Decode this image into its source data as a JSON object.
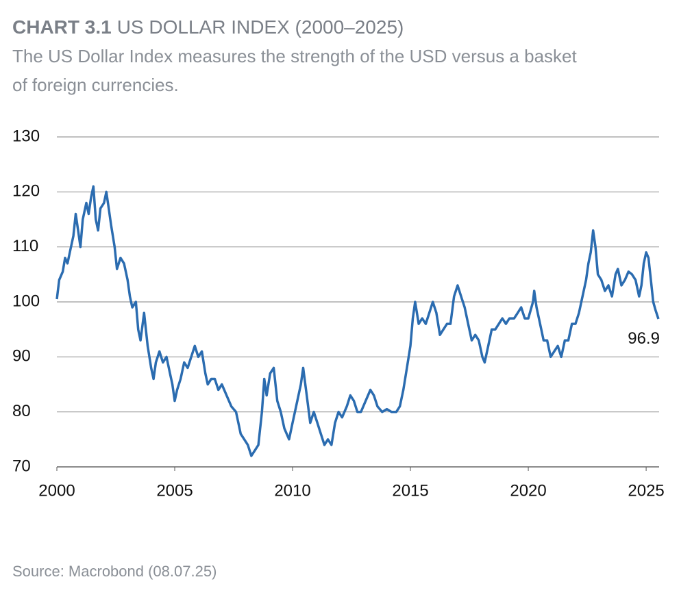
{
  "chart_data": {
    "type": "line",
    "title_label": "CHART 3.1",
    "title": "US DOLLAR INDEX (2000–2025)",
    "subtitle": [
      "The US Dollar Index measures the strength of the USD versus a basket",
      "of foreign currencies."
    ],
    "source": "Source: Macrobond (08.07.25)",
    "x": [
      2000.0,
      2000.1,
      2000.25,
      2000.35,
      2000.45,
      2000.55,
      2000.7,
      2000.8,
      2000.9,
      2001.0,
      2001.1,
      2001.25,
      2001.35,
      2001.45,
      2001.55,
      2001.65,
      2001.75,
      2001.85,
      2002.0,
      2002.1,
      2002.2,
      2002.3,
      2002.45,
      2002.55,
      2002.7,
      2002.85,
      2003.0,
      2003.1,
      2003.2,
      2003.35,
      2003.45,
      2003.55,
      2003.7,
      2003.85,
      2004.0,
      2004.1,
      2004.2,
      2004.35,
      2004.5,
      2004.65,
      2004.8,
      2004.9,
      2005.0,
      2005.1,
      2005.25,
      2005.4,
      2005.55,
      2005.7,
      2005.85,
      2006.0,
      2006.15,
      2006.3,
      2006.4,
      2006.55,
      2006.7,
      2006.85,
      2007.0,
      2007.2,
      2007.4,
      2007.6,
      2007.8,
      2007.95,
      2008.1,
      2008.25,
      2008.4,
      2008.55,
      2008.7,
      2008.8,
      2008.9,
      2009.05,
      2009.2,
      2009.35,
      2009.5,
      2009.65,
      2009.85,
      2010.0,
      2010.15,
      2010.35,
      2010.45,
      2010.6,
      2010.75,
      2010.9,
      2011.05,
      2011.2,
      2011.35,
      2011.5,
      2011.65,
      2011.8,
      2011.95,
      2012.1,
      2012.3,
      2012.45,
      2012.6,
      2012.75,
      2012.9,
      2013.1,
      2013.3,
      2013.45,
      2013.6,
      2013.8,
      2014.0,
      2014.2,
      2014.4,
      2014.55,
      2014.7,
      2014.85,
      2015.0,
      2015.1,
      2015.2,
      2015.35,
      2015.5,
      2015.65,
      2015.8,
      2015.95,
      2016.1,
      2016.25,
      2016.4,
      2016.55,
      2016.7,
      2016.85,
      2017.0,
      2017.15,
      2017.3,
      2017.45,
      2017.6,
      2017.75,
      2017.9,
      2018.05,
      2018.15,
      2018.3,
      2018.45,
      2018.6,
      2018.75,
      2018.9,
      2019.05,
      2019.2,
      2019.4,
      2019.55,
      2019.7,
      2019.85,
      2020.0,
      2020.2,
      2020.25,
      2020.35,
      2020.5,
      2020.65,
      2020.8,
      2020.95,
      2021.1,
      2021.25,
      2021.4,
      2021.55,
      2021.7,
      2021.85,
      2022.0,
      2022.15,
      2022.3,
      2022.45,
      2022.55,
      2022.65,
      2022.75,
      2022.85,
      2022.95,
      2023.1,
      2023.25,
      2023.4,
      2023.55,
      2023.7,
      2023.8,
      2023.95,
      2024.1,
      2024.25,
      2024.4,
      2024.55,
      2024.7,
      2024.8,
      2024.9,
      2025.0,
      2025.1,
      2025.2,
      2025.3,
      2025.4,
      2025.52
    ],
    "series": [
      {
        "name": "US Dollar Index",
        "color": "#2b6cb0",
        "values": [
          100.5,
          104,
          105.5,
          108,
          107,
          109,
          112,
          116,
          113,
          110,
          115,
          118,
          116,
          119,
          121,
          115,
          113,
          117,
          118,
          120,
          117,
          114,
          110,
          106,
          108,
          107,
          104,
          101,
          99,
          100,
          95,
          93,
          98,
          92,
          88,
          86,
          89,
          91,
          89,
          90,
          87,
          85,
          82,
          84,
          86,
          89,
          88,
          90,
          92,
          90,
          91,
          87,
          85,
          86,
          86,
          84,
          85,
          83,
          81,
          80,
          76,
          75,
          74,
          72,
          73,
          74,
          80,
          86,
          83,
          87,
          88,
          82,
          80,
          77,
          75,
          78,
          81,
          85,
          88,
          83,
          78,
          80,
          78,
          76,
          74,
          75,
          74,
          78,
          80,
          79,
          81,
          83,
          82,
          80,
          80,
          82,
          84,
          83,
          81,
          80,
          80.5,
          80,
          80,
          81,
          84,
          88,
          92,
          97,
          100,
          96,
          97,
          96,
          98,
          100,
          98,
          94,
          95,
          96,
          96,
          101,
          103,
          101,
          99,
          96,
          93,
          94,
          93,
          90,
          89,
          92,
          95,
          95,
          96,
          97,
          96,
          97,
          97,
          98,
          99,
          97,
          97,
          100,
          102,
          99,
          96,
          93,
          93,
          90,
          91,
          92,
          90,
          93,
          93,
          96,
          96,
          98,
          101,
          104,
          107,
          109,
          113,
          110,
          105,
          104,
          102,
          103,
          101,
          105,
          106,
          103,
          104,
          105.5,
          105,
          104,
          101,
          103,
          107,
          109,
          108,
          104,
          100,
          98.5,
          96.9
        ]
      }
    ],
    "annotation": {
      "x": 2025.52,
      "y": 96.9
    },
    "xlim": [
      2000,
      2025.55
    ],
    "xticks": [
      2000,
      2005,
      2010,
      2015,
      2020,
      2025
    ],
    "ylim": [
      70,
      130
    ],
    "yticks": [
      70,
      80,
      90,
      100,
      110,
      120,
      130
    ],
    "grid": true
  }
}
